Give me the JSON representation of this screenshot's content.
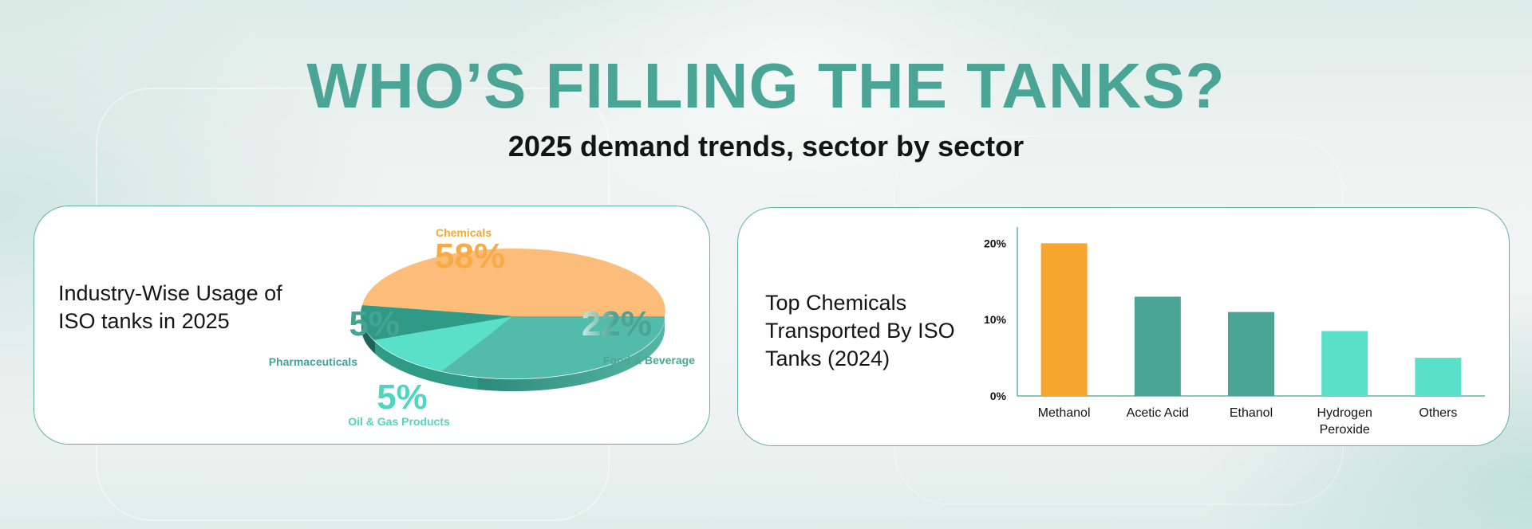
{
  "header": {
    "title": "WHO’S FILLING THE TANKS?",
    "subtitle": "2025 demand trends, sector by sector"
  },
  "colors": {
    "title": "#4ba596",
    "orange": "#f8a52f",
    "pie_orange": "#fcbd7a",
    "teal_dark": "#3a9e8c",
    "teal_mid": "#52bba9",
    "aqua": "#5ae0c8"
  },
  "chart_data": [
    {
      "type": "pie",
      "title": "Industry-Wise Usage of ISO tanks in 2025",
      "slices": [
        {
          "label": "Chemicals",
          "value": 58,
          "display": "58%",
          "color": "#fcbd7a",
          "label_color": "#f6a93b"
        },
        {
          "label": "Food & Beverage",
          "value": 22,
          "display": "22%",
          "color": "#52bba9",
          "label_color": "#4ba596"
        },
        {
          "label": "Oil & Gas Products",
          "value": 5,
          "display": "5%",
          "color": "#5ae0c8",
          "label_color": "#4fd6c0"
        },
        {
          "label": "Pharmaceuticals",
          "value": 5,
          "display": "5%",
          "color": "#2f9a86",
          "label_color": "#45a393"
        }
      ]
    },
    {
      "type": "bar",
      "title": "Top Chemicals Transported By ISO Tanks (2024)",
      "categories": [
        "Methanol",
        "Acetic Acid",
        "Ethanol",
        "Hydrogen Peroxide",
        "Others"
      ],
      "category_lines": [
        [
          "Methanol"
        ],
        [
          "Acetic Acid"
        ],
        [
          "Ethanol"
        ],
        [
          "Hydrogen",
          "Peroxide"
        ],
        [
          "Others"
        ]
      ],
      "values": [
        20,
        13,
        11,
        8.5,
        5
      ],
      "colors": [
        "#f8a52f",
        "#4ba596",
        "#4ba596",
        "#5ae0c8",
        "#5ae0c8"
      ],
      "yticks": [
        0,
        10,
        20
      ],
      "ytick_labels": [
        "0%",
        "10%",
        "20%"
      ],
      "ylim": [
        0,
        21.5
      ],
      "xlabel": "",
      "ylabel": ""
    }
  ]
}
